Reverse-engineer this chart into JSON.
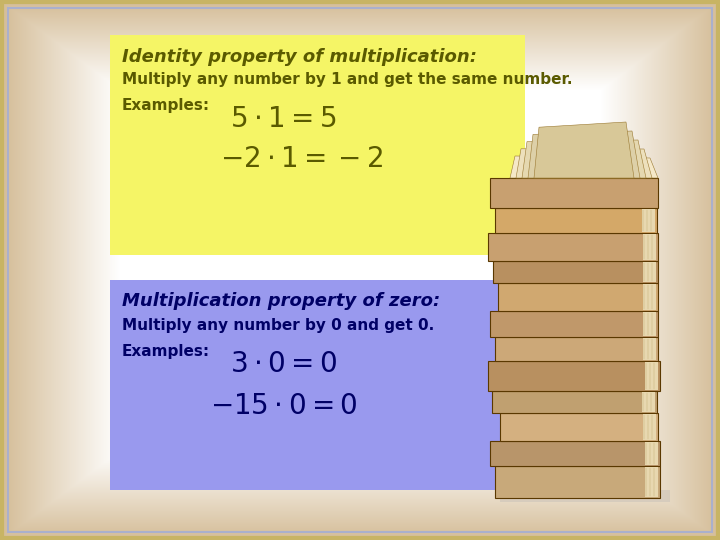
{
  "bg_outer_color": "#d4bc96",
  "bg_inner_color": "#ffffff",
  "border_color_outer": "#c8b464",
  "border_color_inner": "#aab0cc",
  "box1_color": "#f5f566",
  "box1_title": "Identity property of multiplication:",
  "box1_line1": "Multiply any number by 1 and get the same number.",
  "box1_examples_label": "Examples:",
  "box1_eq1": "$5 \\cdot 1 = 5$",
  "box1_eq2": "$-2 \\cdot 1 = -2$",
  "box2_color": "#9999ee",
  "box2_title": "Multiplication property of zero:",
  "box2_line1": "Multiply any number by 0 and get 0.",
  "box2_examples_label": "Examples:",
  "box2_eq1": "$3 \\cdot 0 = 0$",
  "box2_eq2": "$-15 \\cdot 0 = 0$",
  "text_color_dark": "#5a5a00",
  "text_color_box2": "#000066",
  "title_fontsize": 13,
  "body_fontsize": 11,
  "eq_fontsize": 20
}
